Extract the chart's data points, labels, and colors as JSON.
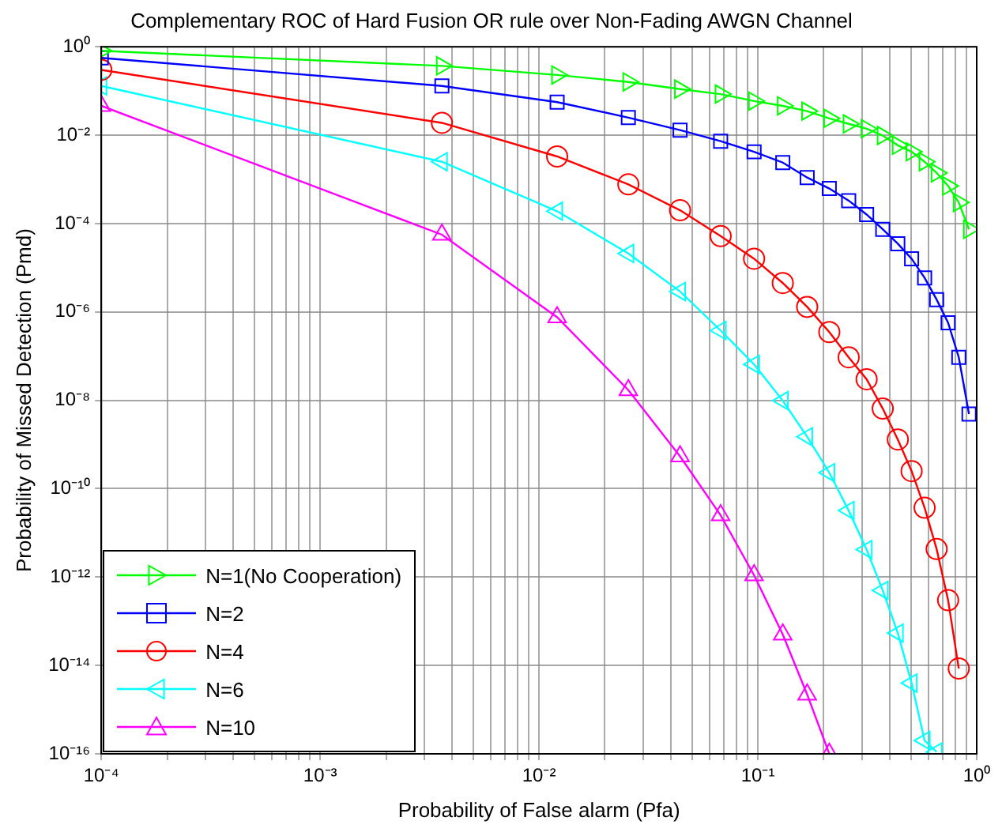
{
  "chart_data": {
    "type": "line",
    "title": "Complementary ROC of Hard Fusion OR rule over Non-Fading AWGN Channel",
    "xlabel": "Probability of False alarm (Pfa)",
    "ylabel": "Probability of Missed Detection (Pmd)",
    "log": "xy",
    "grid": true,
    "legend": "bottom left",
    "xlim": [
      0.0001,
      1
    ],
    "ylim": [
      1e-16,
      1
    ],
    "xticks": [
      {
        "value": 0.0001,
        "label": "10⁻⁴"
      },
      {
        "value": 0.0002,
        "label": null
      },
      {
        "value": 0.0003,
        "label": null
      },
      {
        "value": 0.0004,
        "label": null
      },
      {
        "value": 0.0005,
        "label": null
      },
      {
        "value": 0.0006,
        "label": null
      },
      {
        "value": 0.0007,
        "label": null
      },
      {
        "value": 0.0008,
        "label": null
      },
      {
        "value": 0.0009,
        "label": null
      },
      {
        "value": 0.001,
        "label": "10⁻³"
      },
      {
        "value": 0.002,
        "label": null
      },
      {
        "value": 0.003,
        "label": null
      },
      {
        "value": 0.004,
        "label": null
      },
      {
        "value": 0.005,
        "label": null
      },
      {
        "value": 0.006,
        "label": null
      },
      {
        "value": 0.007,
        "label": null
      },
      {
        "value": 0.008,
        "label": null
      },
      {
        "value": 0.009,
        "label": null
      },
      {
        "value": 0.01,
        "label": "10⁻²"
      },
      {
        "value": 0.02,
        "label": null
      },
      {
        "value": 0.03,
        "label": null
      },
      {
        "value": 0.04,
        "label": null
      },
      {
        "value": 0.05,
        "label": null
      },
      {
        "value": 0.06,
        "label": null
      },
      {
        "value": 0.07,
        "label": null
      },
      {
        "value": 0.08,
        "label": null
      },
      {
        "value": 0.09,
        "label": null
      },
      {
        "value": 0.1,
        "label": "10⁻¹"
      },
      {
        "value": 0.2,
        "label": null
      },
      {
        "value": 0.3,
        "label": null
      },
      {
        "value": 0.4,
        "label": null
      },
      {
        "value": 0.5,
        "label": null
      },
      {
        "value": 0.6,
        "label": null
      },
      {
        "value": 0.7,
        "label": null
      },
      {
        "value": 0.8,
        "label": null
      },
      {
        "value": 0.9,
        "label": null
      },
      {
        "value": 1,
        "label": "10⁰"
      }
    ],
    "yticks": [
      {
        "value": 1e-16,
        "label": "10⁻¹⁶"
      },
      {
        "value": 1e-14,
        "label": "10⁻¹⁴"
      },
      {
        "value": 1e-12,
        "label": "10⁻¹²"
      },
      {
        "value": 1e-10,
        "label": "10⁻¹⁰"
      },
      {
        "value": 1e-08,
        "label": "10⁻⁸"
      },
      {
        "value": 1e-06,
        "label": "10⁻⁶"
      },
      {
        "value": 0.0001,
        "label": "10⁻⁴"
      },
      {
        "value": 0.01,
        "label": "10⁻²"
      },
      {
        "value": 1,
        "label": "10⁰"
      }
    ],
    "series": [
      {
        "name": "N=1(No Cooperation)",
        "color": "#00ff00",
        "marker": "triangle",
        "x": [
          0.0001,
          0.0036,
          0.0121,
          0.0256,
          0.0441,
          0.0676,
          0.0961,
          0.13,
          0.168,
          0.212,
          0.26,
          0.314,
          0.372,
          0.436,
          0.504,
          0.578,
          0.656,
          0.74,
          0.828,
          0.922
        ],
        "values": [
          0.81,
          0.37,
          0.23,
          0.16,
          0.11,
          0.085,
          0.059,
          0.046,
          0.035,
          0.024,
          0.018,
          0.014,
          0.0098,
          0.0059,
          0.0042,
          0.0025,
          0.0014,
          0.00071,
          0.0003,
          7.4e-05
        ]
      },
      {
        "name": "N=2",
        "color": "#0000ff",
        "marker": "square",
        "x": [
          0.0001,
          0.0036,
          0.0121,
          0.0256,
          0.0441,
          0.0676,
          0.0961,
          0.13,
          0.168,
          0.212,
          0.26,
          0.314,
          0.372,
          0.436,
          0.504,
          0.578,
          0.656,
          0.74,
          0.828,
          0.922
        ],
        "values": [
          0.56,
          0.13,
          0.056,
          0.025,
          0.013,
          0.0073,
          0.0042,
          0.0024,
          0.0011,
          0.00062,
          0.00033,
          0.00016,
          7.4e-05,
          3.5e-05,
          1.6e-05,
          5.9e-06,
          1.9e-06,
          5.7e-07,
          9.4e-08,
          4.9e-09
        ]
      },
      {
        "name": "N=4",
        "color": "#ff0000",
        "marker": "circle",
        "x": [
          0.0001,
          0.0036,
          0.0121,
          0.0256,
          0.0441,
          0.0676,
          0.0961,
          0.13,
          0.168,
          0.212,
          0.26,
          0.314,
          0.372,
          0.436,
          0.504,
          0.578,
          0.656,
          0.74,
          0.828
        ],
        "values": [
          0.3,
          0.019,
          0.0033,
          0.00077,
          0.0002,
          5.2e-05,
          1.6e-05,
          4.5e-06,
          1.3e-06,
          3.5e-07,
          9.4e-08,
          3e-08,
          6.5e-09,
          1.3e-09,
          2.5e-10,
          3.7e-11,
          4.3e-12,
          3e-13,
          8.5e-15
        ]
      },
      {
        "name": "N=6",
        "color": "#00ffff",
        "marker": "triangle",
        "x": [
          0.0001,
          0.0036,
          0.0121,
          0.0256,
          0.0441,
          0.0676,
          0.0961,
          0.13,
          0.168,
          0.212,
          0.26,
          0.314,
          0.372,
          0.436,
          0.504,
          0.578,
          0.656
        ],
        "values": [
          0.13,
          0.0025,
          0.00019,
          2.1e-05,
          2.9e-06,
          3.8e-07,
          6.5e-08,
          9.8e-09,
          1.5e-09,
          2.3e-10,
          3.2e-11,
          4.2e-12,
          5e-13,
          5.4e-14,
          4e-15,
          2e-16,
          1.1e-16
        ]
      },
      {
        "name": "N=10",
        "color": "#ff00ff",
        "marker": "triangle",
        "x": [
          0.0001,
          0.0036,
          0.0121,
          0.0256,
          0.0441,
          0.0676,
          0.0961,
          0.13,
          0.168,
          0.212
        ],
        "values": [
          0.046,
          5.6e-05,
          7.6e-07,
          1.7e-08,
          5.4e-10,
          2.5e-11,
          1.1e-12,
          5e-14,
          2.2e-15,
          1e-16
        ]
      }
    ]
  }
}
